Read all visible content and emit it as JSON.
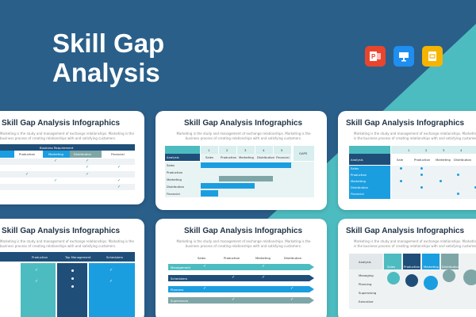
{
  "banner": {
    "title_line1": "Skill Gap",
    "title_line2": "Analysis"
  },
  "colors": {
    "navy": "#2a5f8a",
    "teal": "#4dbcc0",
    "dark_blue": "#1f4e79",
    "bright_blue": "#1b9ee0",
    "gray_teal": "#7fa6a6"
  },
  "apps": [
    {
      "name": "powerpoint-icon",
      "color": "#e8452c"
    },
    {
      "name": "keynote-icon",
      "color": "#1f8ef1"
    },
    {
      "name": "google-slides-icon",
      "color": "#f4b400"
    }
  ],
  "slide_title": "Skill Gap Analysis Infographics",
  "slide_desc": "Marketing is the study and management of exchange relationships. Marketing is the business process of creating relationships with and satisfying customers.",
  "card1": {
    "header": "Business Requirement",
    "columns": [
      "Production",
      "Marketing",
      "Distribution",
      "Financial"
    ]
  },
  "card2": {
    "numbers": [
      "1",
      "2",
      "3",
      "4",
      "5"
    ],
    "gaps": "GAPS",
    "columns": [
      "Analysis",
      "Sales",
      "Production",
      "Marketing",
      "Distribution",
      "Financial"
    ],
    "rows": [
      "Sales",
      "Production",
      "Marketing",
      "Distribution",
      "Financial"
    ]
  },
  "card3": {
    "numbers": [
      "1",
      "2",
      "3",
      "4",
      "5"
    ],
    "columns": [
      "Analysis",
      "Sale",
      "Production",
      "Marketing",
      "Distribution"
    ],
    "rows": [
      "Sales",
      "Production",
      "Marketing",
      "Distribution",
      "Financial"
    ]
  },
  "card4": {
    "columns": [
      "Production",
      "Top Management",
      "Schedulers"
    ]
  },
  "card5": {
    "columns": [
      "Sales",
      "Production",
      "Marketing",
      "Distribution"
    ],
    "rows": [
      "Management",
      "Schedulers",
      "Planners",
      "Supervisors"
    ]
  },
  "card6": {
    "header": "Analysis",
    "columns": [
      "Sales",
      "Production",
      "Marketing",
      "Distribution"
    ],
    "rows": [
      "Managing",
      "Planning",
      "Supervising",
      "Executive"
    ]
  }
}
